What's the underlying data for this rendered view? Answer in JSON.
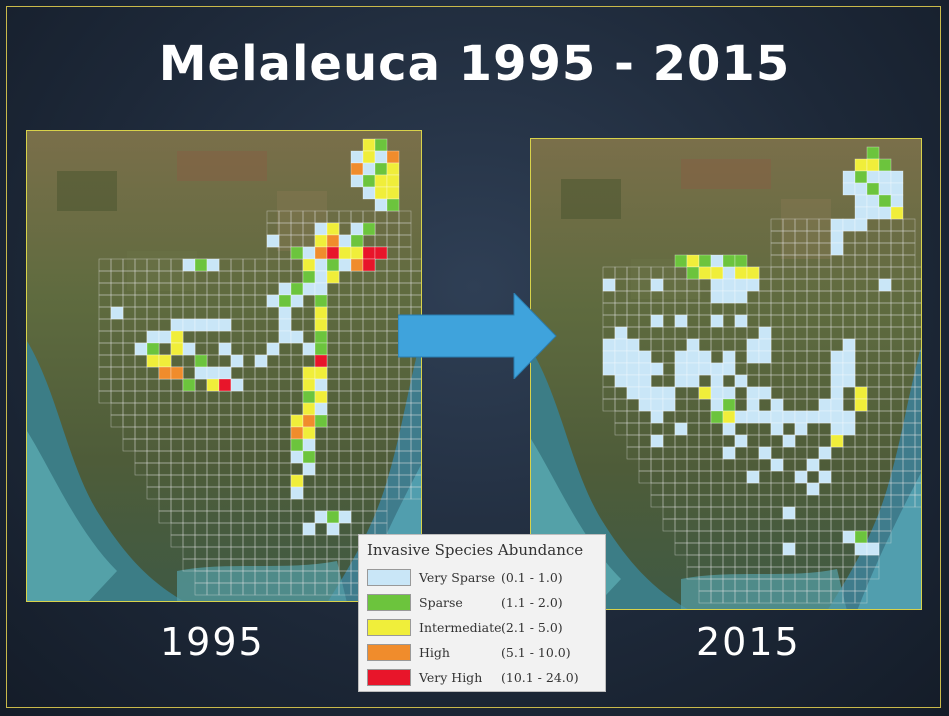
{
  "title": "Melaleuca 1995 - 2015",
  "maps": [
    {
      "year_label": "1995"
    },
    {
      "year_label": "2015"
    }
  ],
  "legend": {
    "title": "Invasive Species Abundance",
    "items": [
      {
        "name": "Very Sparse",
        "range": "(0.1 - 1.0)",
        "color": "#c9e6f7"
      },
      {
        "name": "Sparse",
        "range": "(1.1 - 2.0)",
        "color": "#6cc43d"
      },
      {
        "name": "Intermediate",
        "range": "(2.1 - 5.0)",
        "color": "#f0ee3a"
      },
      {
        "name": "High",
        "range": "(5.1 - 10.0)",
        "color": "#f08c2c"
      },
      {
        "name": "Very High",
        "range": "(10.1 - 24.0)",
        "color": "#e8152a"
      }
    ]
  },
  "colors": {
    "frame": "#c9b94a",
    "arrow": "#3fa3dc",
    "land": "#5d6a3e",
    "water": "#4f9aa7"
  }
}
